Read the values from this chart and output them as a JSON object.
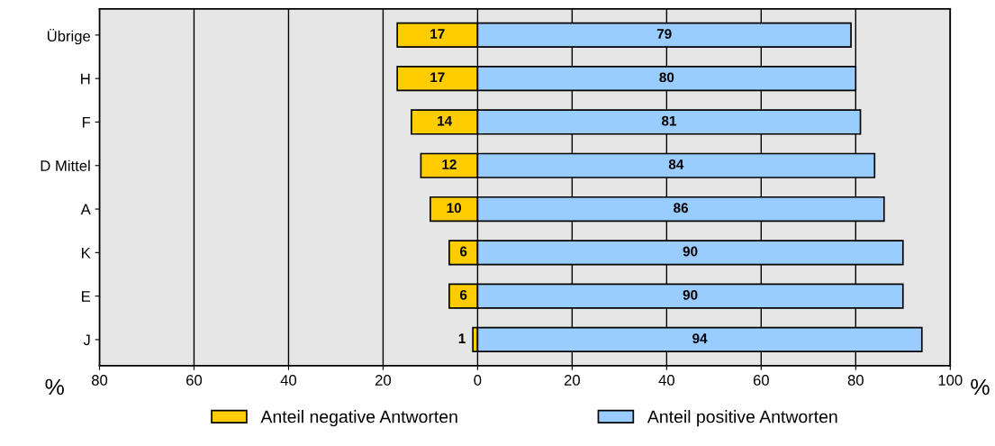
{
  "chart_data": {
    "type": "bar",
    "orientation": "horizontal",
    "categories": [
      "Übrige",
      "H",
      "F",
      "D Mittel",
      "A",
      "K",
      "E",
      "J"
    ],
    "series": [
      {
        "name": "Anteil negative Antworten",
        "color": "#ffcc00",
        "base": [
          -17,
          -17,
          -14,
          -12,
          -10,
          -6,
          -6,
          -1
        ],
        "values": [
          17,
          17,
          14,
          12,
          10,
          6,
          6,
          1
        ]
      },
      {
        "name": "Anteil positive Antworten",
        "color": "#99ccff",
        "values": [
          79,
          80,
          81,
          84,
          86,
          90,
          90,
          94
        ]
      }
    ],
    "data_labels": true,
    "xlim": [
      -80,
      100
    ],
    "xticks": [
      {
        "value": -80,
        "label": "80"
      },
      {
        "value": -60,
        "label": "60"
      },
      {
        "value": -40,
        "label": "40"
      },
      {
        "value": -20,
        "label": "20"
      },
      0,
      20,
      40,
      60,
      80,
      100
    ],
    "annotations": [
      "%",
      "%"
    ],
    "grid": "x",
    "legend": "bottom"
  }
}
